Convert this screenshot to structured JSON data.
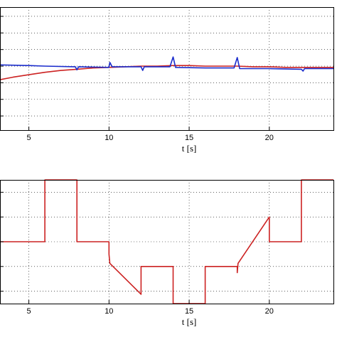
{
  "chart_data": [
    {
      "type": "line",
      "xlabel": "t [s]",
      "xlim": [
        3.2,
        24
      ],
      "ylim": [
        -1,
        1
      ],
      "xticks": [
        5,
        10,
        15,
        20
      ],
      "yticks_grid": [
        0.85,
        0.58,
        0.31,
        0.04,
        -0.23,
        -0.5,
        -0.77
      ],
      "grid": true,
      "series": [
        {
          "color": "#cc2222",
          "points": [
            [
              3.2,
              -0.18
            ],
            [
              4,
              -0.14
            ],
            [
              5,
              -0.1
            ],
            [
              6,
              -0.06
            ],
            [
              7,
              -0.03
            ],
            [
              8,
              -0.01
            ],
            [
              9,
              0.01
            ],
            [
              10,
              0.02
            ],
            [
              11,
              0.03
            ],
            [
              12,
              0.04
            ],
            [
              13,
              0.04
            ],
            [
              14,
              0.05
            ],
            [
              15,
              0.05
            ],
            [
              16,
              0.04
            ],
            [
              17,
              0.04
            ],
            [
              18,
              0.04
            ],
            [
              19,
              0.03
            ],
            [
              20,
              0.03
            ],
            [
              21,
              0.02
            ],
            [
              22,
              0.02
            ],
            [
              23,
              0.02
            ],
            [
              24,
              0.02
            ]
          ]
        },
        {
          "color": "#1a2ccc",
          "points": [
            [
              3.2,
              0.06
            ],
            [
              5,
              0.05
            ],
            [
              6,
              0.04
            ],
            [
              7.9,
              0.03
            ],
            [
              8,
              -0.02
            ],
            [
              8.1,
              0.03
            ],
            [
              10,
              0.02
            ],
            [
              10.05,
              0.1
            ],
            [
              10.2,
              0.03
            ],
            [
              12,
              0.03
            ],
            [
              12.1,
              -0.03
            ],
            [
              12.2,
              0.03
            ],
            [
              13.8,
              0.03
            ],
            [
              14,
              0.19
            ],
            [
              14.15,
              0.02
            ],
            [
              16,
              0.01
            ],
            [
              17.8,
              0.01
            ],
            [
              18,
              0.18
            ],
            [
              18.15,
              0.0
            ],
            [
              20,
              0.0
            ],
            [
              22,
              -0.01
            ],
            [
              22.1,
              -0.04
            ],
            [
              22.2,
              0.0
            ],
            [
              24,
              0.0
            ]
          ]
        }
      ]
    },
    {
      "type": "line",
      "xlabel": "t [s]",
      "xlim": [
        3.2,
        24
      ],
      "ylim": [
        -1,
        1
      ],
      "xticks": [
        5,
        10,
        15,
        20
      ],
      "yticks_grid": [
        0.8,
        0.4,
        0.0,
        -0.4,
        -0.8
      ],
      "grid": true,
      "series": [
        {
          "color": "#cc2222",
          "points": [
            [
              3.2,
              0.0
            ],
            [
              6,
              0.0
            ],
            [
              6,
              1.0
            ],
            [
              8,
              1.0
            ],
            [
              8,
              0.0
            ],
            [
              10,
              0.0
            ],
            [
              10,
              -0.2
            ],
            [
              10.05,
              -0.35
            ],
            [
              12,
              -0.85
            ],
            [
              12,
              -0.4
            ],
            [
              14,
              -0.4
            ],
            [
              14,
              -1.0
            ],
            [
              16,
              -1.0
            ],
            [
              16,
              -0.4
            ],
            [
              18,
              -0.4
            ],
            [
              18,
              -0.5
            ],
            [
              18.05,
              -0.35
            ],
            [
              20,
              0.4
            ],
            [
              20,
              0.0
            ],
            [
              22,
              0.0
            ],
            [
              22,
              1.0
            ],
            [
              24,
              1.0
            ]
          ]
        }
      ]
    }
  ]
}
